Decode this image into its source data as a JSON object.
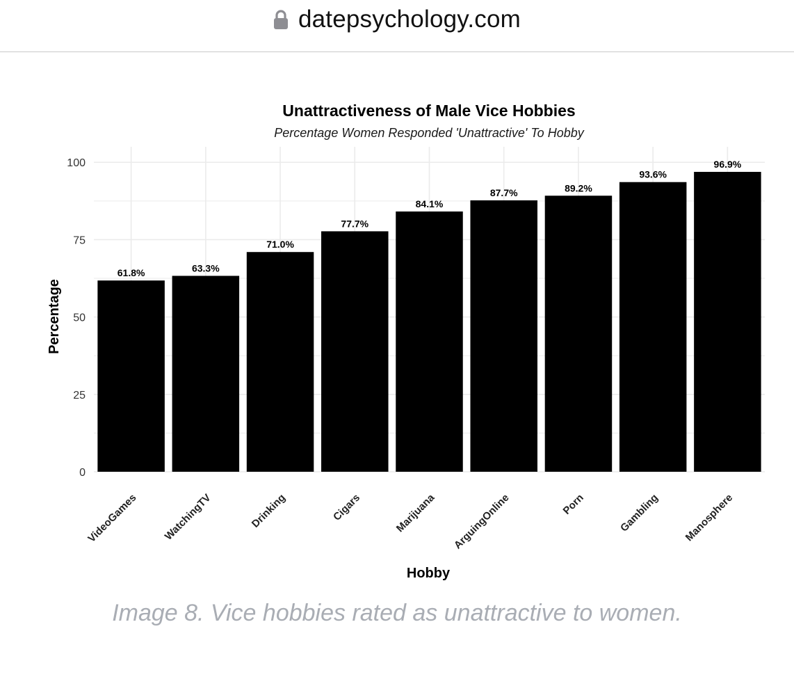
{
  "browser": {
    "url": "datepsychology.com",
    "lock_icon": "lock-icon"
  },
  "chart_data": {
    "type": "bar",
    "title": "Unattractiveness of Male Vice Hobbies",
    "subtitle": "Percentage Women Responded 'Unattractive' To Hobby",
    "xlabel": "Hobby",
    "ylabel": "Percentage",
    "categories": [
      "VideoGames",
      "WatchingTV",
      "Drinking",
      "Cigars",
      "Marijuana",
      "ArguingOnline",
      "Porn",
      "Gambling",
      "Manosphere"
    ],
    "values": [
      61.8,
      63.3,
      71.0,
      77.7,
      84.1,
      87.7,
      89.2,
      93.6,
      96.9
    ],
    "value_labels": [
      "61.8%",
      "63.3%",
      "71.0%",
      "77.7%",
      "84.1%",
      "87.7%",
      "89.2%",
      "93.6%",
      "96.9%"
    ],
    "yticks": [
      0,
      25,
      50,
      75,
      100
    ],
    "ylim": [
      0,
      100
    ],
    "grid": true,
    "bar_color": "#000000",
    "grid_color": "#ebebeb"
  },
  "caption": "Image 8. Vice hobbies rated as unattractive to women."
}
